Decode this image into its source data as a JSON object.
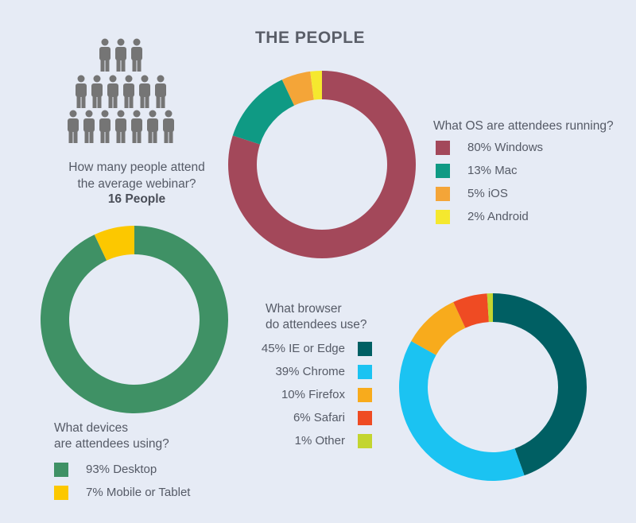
{
  "title": "THE PEOPLE",
  "people": {
    "question_line1": "How many people attend",
    "question_line2": "the average webinar?",
    "answer": "16 People",
    "icon": "person-icon",
    "rows": [
      3,
      6,
      7
    ],
    "color": "#757575"
  },
  "chart_data": [
    {
      "type": "pie",
      "question": "What OS are attendees running?",
      "categories": [
        "Windows",
        "Mac",
        "iOS",
        "Android"
      ],
      "values": [
        80,
        13,
        5,
        2
      ],
      "labels": [
        "80% Windows",
        "13% Mac",
        "5% iOS",
        "2% Android"
      ],
      "colors": [
        "#a3485a",
        "#0f9a84",
        "#f4a538",
        "#f5e82e"
      ]
    },
    {
      "type": "pie",
      "question_line1": "What devices",
      "question_line2": "are attendees using?",
      "categories": [
        "Desktop",
        "Mobile or Tablet"
      ],
      "values": [
        93,
        7
      ],
      "labels": [
        "93% Desktop",
        "7% Mobile or Tablet"
      ],
      "colors": [
        "#3f9165",
        "#fcc800"
      ]
    },
    {
      "type": "pie",
      "question_line1": "What browser",
      "question_line2": "do attendees use?",
      "categories": [
        "IE or Edge",
        "Chrome",
        "Firefox",
        "Safari",
        "Other"
      ],
      "values": [
        45,
        39,
        10,
        6,
        1
      ],
      "labels": [
        "45% IE or Edge",
        "39% Chrome",
        "10% Firefox",
        "6% Safari",
        "1% Other"
      ],
      "colors": [
        "#005f63",
        "#1bc3f2",
        "#f8ab1c",
        "#ef4b23",
        "#c3d530"
      ]
    }
  ]
}
